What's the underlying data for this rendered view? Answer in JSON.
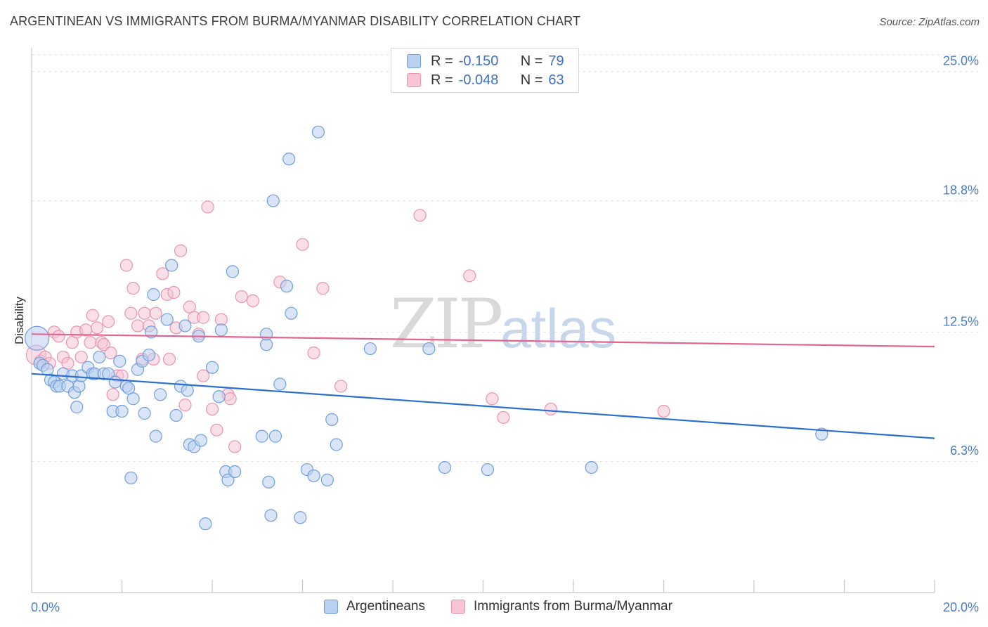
{
  "title": "ARGENTINEAN VS IMMIGRANTS FROM BURMA/MYANMAR DISABILITY CORRELATION CHART",
  "source": "Source: ZipAtlas.com",
  "watermark": {
    "zip": "ZIP",
    "atlas": "atlas"
  },
  "legend": {
    "rows": [
      {
        "r_label": "R =",
        "r_value": "-0.150",
        "n_label": "N =",
        "n_value": "79"
      },
      {
        "r_label": "R =",
        "r_value": "-0.048",
        "n_label": "N =",
        "n_value": "63"
      }
    ]
  },
  "colors": {
    "blue_fill": "#b9d0f0",
    "blue_stroke": "#6f9fdc",
    "blue_line": "#2a6fcc",
    "pink_fill": "#f7c5d5",
    "pink_stroke": "#e993b0",
    "pink_line": "#e26590",
    "grid": "#e2e2e2",
    "axis_text": "#4a7cc9"
  },
  "chart_data": {
    "type": "scatter",
    "title": "ARGENTINEAN VS IMMIGRANTS FROM BURMA/MYANMAR DISABILITY CORRELATION CHART",
    "xlabel": "",
    "ylabel": "Disability",
    "xlim": [
      0,
      20
    ],
    "ylim": [
      0,
      25.8
    ],
    "x_tick_labels": [
      "0.0%",
      "20.0%"
    ],
    "y_ticks": [
      6.3,
      12.5,
      18.8,
      25.0
    ],
    "y_tick_labels": [
      "6.3%",
      "12.5%",
      "18.8%",
      "25.0%"
    ],
    "series": [
      {
        "name": "Argentineans",
        "color": "blue",
        "r": -0.15,
        "n": 79,
        "trend": {
          "x": [
            0,
            20
          ],
          "y": [
            10.5,
            7.4
          ]
        },
        "points": [
          [
            0.12,
            12.2
          ],
          [
            0.18,
            11.0
          ],
          [
            0.25,
            10.9
          ],
          [
            0.35,
            10.7
          ],
          [
            0.42,
            10.2
          ],
          [
            0.5,
            10.1
          ],
          [
            0.55,
            9.9
          ],
          [
            0.62,
            9.9
          ],
          [
            0.7,
            10.5
          ],
          [
            0.8,
            9.9
          ],
          [
            0.9,
            10.4
          ],
          [
            0.95,
            9.6
          ],
          [
            1.0,
            8.9
          ],
          [
            1.05,
            9.9
          ],
          [
            1.1,
            10.4
          ],
          [
            1.25,
            10.8
          ],
          [
            1.35,
            10.5
          ],
          [
            1.4,
            10.5
          ],
          [
            1.5,
            11.3
          ],
          [
            1.6,
            10.5
          ],
          [
            1.7,
            10.5
          ],
          [
            1.8,
            8.7
          ],
          [
            1.85,
            10.1
          ],
          [
            1.95,
            11.1
          ],
          [
            2.0,
            8.7
          ],
          [
            2.1,
            9.9
          ],
          [
            2.15,
            9.8
          ],
          [
            2.2,
            5.5
          ],
          [
            2.25,
            9.3
          ],
          [
            2.35,
            10.7
          ],
          [
            2.45,
            11.1
          ],
          [
            2.5,
            8.6
          ],
          [
            2.6,
            11.4
          ],
          [
            2.65,
            12.5
          ],
          [
            2.7,
            14.3
          ],
          [
            2.75,
            7.5
          ],
          [
            2.85,
            9.5
          ],
          [
            3.0,
            13.1
          ],
          [
            3.1,
            15.7
          ],
          [
            3.2,
            8.5
          ],
          [
            3.3,
            9.9
          ],
          [
            3.4,
            12.8
          ],
          [
            3.45,
            9.7
          ],
          [
            3.5,
            7.1
          ],
          [
            3.6,
            7.0
          ],
          [
            3.7,
            12.3
          ],
          [
            3.75,
            7.3
          ],
          [
            3.85,
            3.3
          ],
          [
            4.0,
            10.8
          ],
          [
            4.15,
            9.4
          ],
          [
            4.2,
            12.6
          ],
          [
            4.3,
            5.8
          ],
          [
            4.35,
            5.4
          ],
          [
            4.45,
            15.4
          ],
          [
            4.5,
            5.8
          ],
          [
            5.1,
            7.5
          ],
          [
            5.2,
            11.9
          ],
          [
            5.25,
            5.3
          ],
          [
            5.3,
            3.7
          ],
          [
            5.35,
            18.8
          ],
          [
            5.4,
            7.5
          ],
          [
            5.5,
            10.0
          ],
          [
            5.65,
            14.7
          ],
          [
            5.7,
            20.8
          ],
          [
            5.75,
            13.4
          ],
          [
            5.95,
            3.6
          ],
          [
            6.1,
            5.9
          ],
          [
            6.25,
            5.6
          ],
          [
            6.35,
            22.1
          ],
          [
            6.55,
            5.4
          ],
          [
            6.65,
            8.3
          ],
          [
            6.75,
            7.1
          ],
          [
            7.5,
            11.7
          ],
          [
            8.8,
            11.7
          ],
          [
            9.15,
            6.0
          ],
          [
            10.1,
            5.9
          ],
          [
            12.4,
            6.0
          ],
          [
            17.5,
            7.6
          ],
          [
            5.2,
            12.4
          ]
        ]
      },
      {
        "name": "Immigrants from Burma/Myanmar",
        "color": "pink",
        "r": -0.048,
        "n": 63,
        "trend": {
          "x": [
            0,
            20
          ],
          "y": [
            12.4,
            11.8
          ]
        },
        "points": [
          [
            0.1,
            11.4
          ],
          [
            0.2,
            11.1
          ],
          [
            0.3,
            11.3
          ],
          [
            0.4,
            11.0
          ],
          [
            0.5,
            12.5
          ],
          [
            0.6,
            12.3
          ],
          [
            0.7,
            11.3
          ],
          [
            0.8,
            11.0
          ],
          [
            0.9,
            12.0
          ],
          [
            1.0,
            12.5
          ],
          [
            1.1,
            11.3
          ],
          [
            1.2,
            12.6
          ],
          [
            1.3,
            12.0
          ],
          [
            1.35,
            13.3
          ],
          [
            1.45,
            12.7
          ],
          [
            1.55,
            12.0
          ],
          [
            1.6,
            11.9
          ],
          [
            1.7,
            13.0
          ],
          [
            1.75,
            11.5
          ],
          [
            1.8,
            9.5
          ],
          [
            1.9,
            10.4
          ],
          [
            2.0,
            10.4
          ],
          [
            2.1,
            15.7
          ],
          [
            2.2,
            13.4
          ],
          [
            2.25,
            14.6
          ],
          [
            2.35,
            12.8
          ],
          [
            2.45,
            11.2
          ],
          [
            2.5,
            13.4
          ],
          [
            2.6,
            12.8
          ],
          [
            2.7,
            11.2
          ],
          [
            2.75,
            13.4
          ],
          [
            2.9,
            15.3
          ],
          [
            3.0,
            14.3
          ],
          [
            3.05,
            11.2
          ],
          [
            3.15,
            14.4
          ],
          [
            3.2,
            12.7
          ],
          [
            3.3,
            16.4
          ],
          [
            3.4,
            9.0
          ],
          [
            3.5,
            13.7
          ],
          [
            3.6,
            13.2
          ],
          [
            3.7,
            12.4
          ],
          [
            3.8,
            13.2
          ],
          [
            3.9,
            18.5
          ],
          [
            4.0,
            8.8
          ],
          [
            4.1,
            7.8
          ],
          [
            4.2,
            13.1
          ],
          [
            4.35,
            9.5
          ],
          [
            4.4,
            9.3
          ],
          [
            4.5,
            7.0
          ],
          [
            4.65,
            14.2
          ],
          [
            4.9,
            14.0
          ],
          [
            5.5,
            14.9
          ],
          [
            6.0,
            16.7
          ],
          [
            6.25,
            11.5
          ],
          [
            6.45,
            14.6
          ],
          [
            6.85,
            9.9
          ],
          [
            8.6,
            18.1
          ],
          [
            9.7,
            15.2
          ],
          [
            10.2,
            9.3
          ],
          [
            10.45,
            8.4
          ],
          [
            11.5,
            8.8
          ],
          [
            14.0,
            8.7
          ],
          [
            3.8,
            10.4
          ]
        ]
      }
    ]
  },
  "bottom_legend": [
    "Argentineans",
    "Immigrants from Burma/Myanmar"
  ]
}
